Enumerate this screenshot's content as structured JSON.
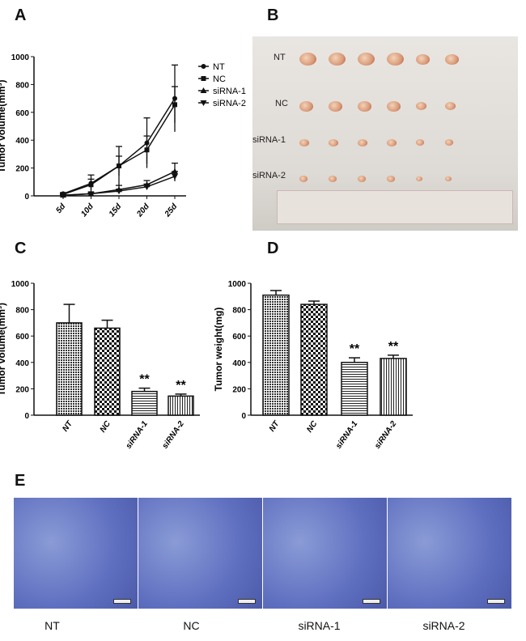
{
  "panels": {
    "a": "A",
    "b": "B",
    "c": "C",
    "d": "D",
    "e": "E"
  },
  "photo_labels": [
    "NT",
    "NC",
    "siRNA-1",
    "siRNA-2"
  ],
  "histology_labels": [
    "NT",
    "NC",
    "siRNA-1",
    "siRNA-2"
  ],
  "chart_data": [
    {
      "type": "line",
      "panel": "A",
      "ylabel": "Tumor volume(mm³)",
      "ylim": [
        0,
        1000
      ],
      "yticks": [
        0,
        200,
        400,
        600,
        800,
        1000
      ],
      "x": [
        "5d",
        "10d",
        "15d",
        "20d",
        "25d"
      ],
      "series": [
        {
          "name": "NT",
          "marker": "circle",
          "values": [
            15,
            90,
            215,
            380,
            700
          ],
          "errors": [
            8,
            60,
            140,
            180,
            240
          ]
        },
        {
          "name": "NC",
          "marker": "square",
          "values": [
            10,
            80,
            215,
            330,
            655
          ],
          "errors": [
            6,
            40,
            70,
            100,
            130
          ]
        },
        {
          "name": "siRNA-1",
          "marker": "triangle-up",
          "values": [
            5,
            15,
            45,
            80,
            175
          ],
          "errors": [
            4,
            8,
            30,
            30,
            60
          ]
        },
        {
          "name": "siRNA-2",
          "marker": "triangle-down",
          "values": [
            3,
            15,
            35,
            65,
            140
          ],
          "errors": [
            3,
            6,
            10,
            20,
            35
          ]
        }
      ],
      "legend": "right"
    },
    {
      "type": "bar",
      "panel": "C",
      "ylabel": "Tumor volume(mm³)",
      "ylim": [
        0,
        1000
      ],
      "yticks": [
        0,
        200,
        400,
        600,
        800,
        1000
      ],
      "categories": [
        "NT",
        "NC",
        "siRNA-1",
        "siRNA-2"
      ],
      "values": [
        700,
        660,
        180,
        145
      ],
      "errors": [
        140,
        60,
        25,
        15
      ],
      "annotations": [
        "",
        "",
        "**",
        "**"
      ],
      "patterns": [
        "dots",
        "checker",
        "hlines",
        "vlines"
      ]
    },
    {
      "type": "bar",
      "panel": "D",
      "ylabel": "Tumor weight(mg)",
      "ylim": [
        0,
        1000
      ],
      "yticks": [
        0,
        200,
        400,
        600,
        800,
        1000
      ],
      "categories": [
        "NT",
        "NC",
        "siRNA-1",
        "siRNA-2"
      ],
      "values": [
        910,
        840,
        400,
        430
      ],
      "errors": [
        35,
        25,
        35,
        25
      ],
      "annotations": [
        "",
        "",
        "**",
        "**"
      ],
      "patterns": [
        "dots",
        "checker",
        "hlines",
        "vlines"
      ]
    }
  ]
}
